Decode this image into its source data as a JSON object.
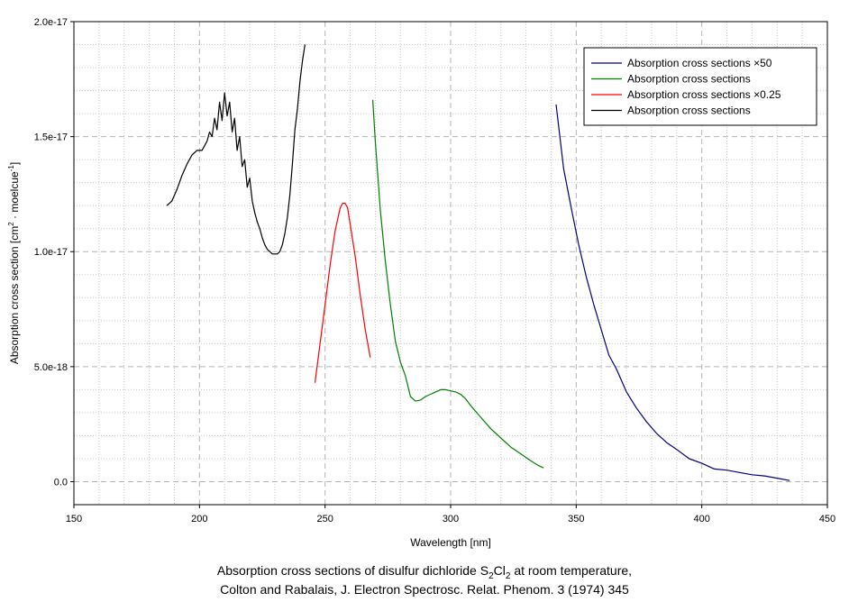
{
  "chart_data": {
    "type": "line",
    "title": "",
    "xlabel": "Wavelength [nm]",
    "ylabel": {
      "base": "Absorption cross section [cm",
      "sup1": "2",
      "mid": " · moelcue",
      "sup2": "-1",
      "end": "]"
    },
    "xlim": [
      150,
      450
    ],
    "ylim": [
      -1e-18,
      2e-17
    ],
    "xticks": [
      150,
      200,
      250,
      300,
      350,
      400,
      450
    ],
    "xtick_labels": [
      "150",
      "200",
      "250",
      "300",
      "350",
      "400",
      "450"
    ],
    "yticks": [
      0,
      5e-18,
      1e-17,
      1.5e-17,
      2e-17
    ],
    "ytick_labels": [
      "0.0",
      "5.0e-18",
      "1.0e-17",
      "1.5e-17",
      "2.0e-17"
    ],
    "grid": true,
    "legend_position": "top-right",
    "series": [
      {
        "name": "Absorption cross sections ×50",
        "color": "#000080",
        "x": [
          342,
          345,
          348,
          351,
          354,
          357,
          360,
          363,
          366,
          370,
          374,
          378,
          382,
          386,
          390,
          395,
          400,
          405,
          410,
          415,
          420,
          425,
          430,
          435
        ],
        "y": [
          1.64e-17,
          1.36e-17,
          1.19e-17,
          1.03e-17,
          8.9e-18,
          7.7e-18,
          6.6e-18,
          5.5e-18,
          4.9e-18,
          3.9e-18,
          3.2e-18,
          2.6e-18,
          2.1e-18,
          1.7e-18,
          1.4e-18,
          1e-18,
          8e-19,
          5.5e-19,
          5e-19,
          4e-19,
          3e-19,
          2.5e-19,
          1.5e-19,
          5e-20
        ]
      },
      {
        "name": "Absorption cross sections",
        "color": "#008000",
        "x": [
          269,
          270,
          272,
          274,
          276,
          278,
          280,
          282,
          284,
          286,
          288,
          290,
          292,
          294,
          296,
          298,
          300,
          302,
          304,
          306,
          308,
          312,
          316,
          320,
          324,
          328,
          332,
          335,
          337
        ],
        "y": [
          1.66e-17,
          1.48e-17,
          1.18e-17,
          9.6e-18,
          7.7e-18,
          6.1e-18,
          5.2e-18,
          4.6e-18,
          3.7e-18,
          3.5e-18,
          3.55e-18,
          3.7e-18,
          3.8e-18,
          3.9e-18,
          4e-18,
          4e-18,
          3.95e-18,
          3.9e-18,
          3.8e-18,
          3.6e-18,
          3.3e-18,
          2.8e-18,
          2.3e-18,
          1.9e-18,
          1.5e-18,
          1.2e-18,
          9e-19,
          7e-19,
          6e-19
        ]
      },
      {
        "name": "Absorption cross sections ×0.25",
        "color": "#ff0000",
        "x": [
          246,
          248,
          250,
          252,
          254,
          256,
          257,
          258,
          259,
          260,
          262,
          264,
          266,
          268
        ],
        "y": [
          4.3e-18,
          6e-18,
          7.7e-18,
          9.4e-18,
          1.09e-17,
          1.19e-17,
          1.21e-17,
          1.21e-17,
          1.19e-17,
          1.12e-17,
          9.8e-18,
          8.1e-18,
          6.6e-18,
          5.4e-18
        ]
      },
      {
        "name": "Absorption cross sections",
        "color": "#000000",
        "x": [
          187,
          189,
          191,
          193,
          195,
          197,
          199,
          201,
          203,
          204,
          205,
          206,
          207,
          208,
          209,
          210,
          211,
          212,
          213,
          214,
          215,
          216,
          217,
          218,
          219,
          220,
          221,
          222,
          223,
          224,
          225,
          226,
          227,
          228,
          229,
          230,
          231,
          232,
          233,
          234,
          235,
          236,
          237,
          238,
          239,
          240,
          241,
          242
        ],
        "y": [
          1.2e-17,
          1.22e-17,
          1.27e-17,
          1.33e-17,
          1.38e-17,
          1.42e-17,
          1.44e-17,
          1.44e-17,
          1.48e-17,
          1.52e-17,
          1.5e-17,
          1.58e-17,
          1.53e-17,
          1.65e-17,
          1.57e-17,
          1.69e-17,
          1.59e-17,
          1.65e-17,
          1.52e-17,
          1.58e-17,
          1.44e-17,
          1.5e-17,
          1.37e-17,
          1.4e-17,
          1.28e-17,
          1.32e-17,
          1.22e-17,
          1.17e-17,
          1.13e-17,
          1.1e-17,
          1.06e-17,
          1.03e-17,
          1.01e-17,
          1e-17,
          9.9e-18,
          9.9e-18,
          9.9e-18,
          1e-17,
          1.03e-17,
          1.08e-17,
          1.15e-17,
          1.25e-17,
          1.38e-17,
          1.53e-17,
          1.62e-17,
          1.74e-17,
          1.83e-17,
          1.9e-17
        ]
      }
    ]
  },
  "caption": {
    "line1_pre": "Absorption cross sections of disulfur dichloride S",
    "line1_sub1": "2",
    "line1_mid": "Cl",
    "line1_sub2": "2",
    "line1_post": " at room temperature,",
    "line2": "Colton and Rabalais,  J. Electron Spectrosc. Relat. Phenom. 3 (1974) 345"
  }
}
